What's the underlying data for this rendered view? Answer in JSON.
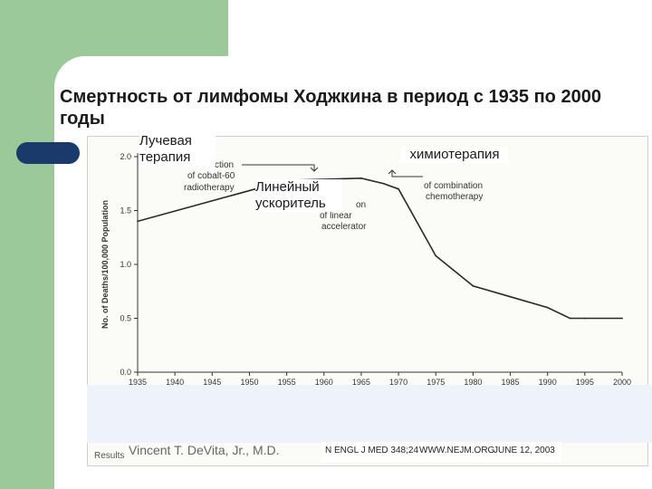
{
  "slide": {
    "title": "Смертность от лимфомы Ходжкина в период с 1935 по 2000 годы"
  },
  "overlays": {
    "radiotherapy_ru": "Лучевая терапия",
    "accelerator_ru": "Линейный ускоритель",
    "chemo_ru": "химиотерапия"
  },
  "annotations": {
    "cobalt": [
      "of cobalt-60",
      "radiotherapy"
    ],
    "cobalt_partial": "ction",
    "linear": [
      "of linear",
      "accelerator"
    ],
    "linear_partial": "on",
    "combination": [
      "of combination",
      "chemotherapy"
    ]
  },
  "footer": {
    "left_fragment": "Vincent T. DeVita, Jr., M.D.",
    "left_small": "Results",
    "journal": "N ENGL J MED 348;24",
    "site": "WWW.NEJM.ORG",
    "date": "JUNE 12, 2003"
  },
  "colors": {
    "green": "#9cc99a",
    "navy": "#1a3a6b",
    "line": "#2a2a2a"
  },
  "chart_data": {
    "type": "line",
    "ylabel": "No. of Deaths/100,000 Population",
    "xlabel": "",
    "ylim": [
      0.0,
      2.0
    ],
    "xlim": [
      1935,
      2000
    ],
    "yticks": [
      "0.0",
      "0.5",
      "1.0",
      "1.5",
      "2.0"
    ],
    "xticks": [
      "1935",
      "1940",
      "1945",
      "1950",
      "1955",
      "1960",
      "1965",
      "1970",
      "1975",
      "1980",
      "1985",
      "1990",
      "1995",
      "2000"
    ],
    "series": [
      {
        "x": [
          1935,
          1955,
          1965,
          1968,
          1970,
          1975,
          1980,
          1985,
          1990,
          1993,
          1995,
          2000
        ],
        "y": [
          1.4,
          1.78,
          1.8,
          1.75,
          1.7,
          1.08,
          0.8,
          0.7,
          0.6,
          0.5,
          0.5,
          0.5
        ]
      }
    ]
  }
}
